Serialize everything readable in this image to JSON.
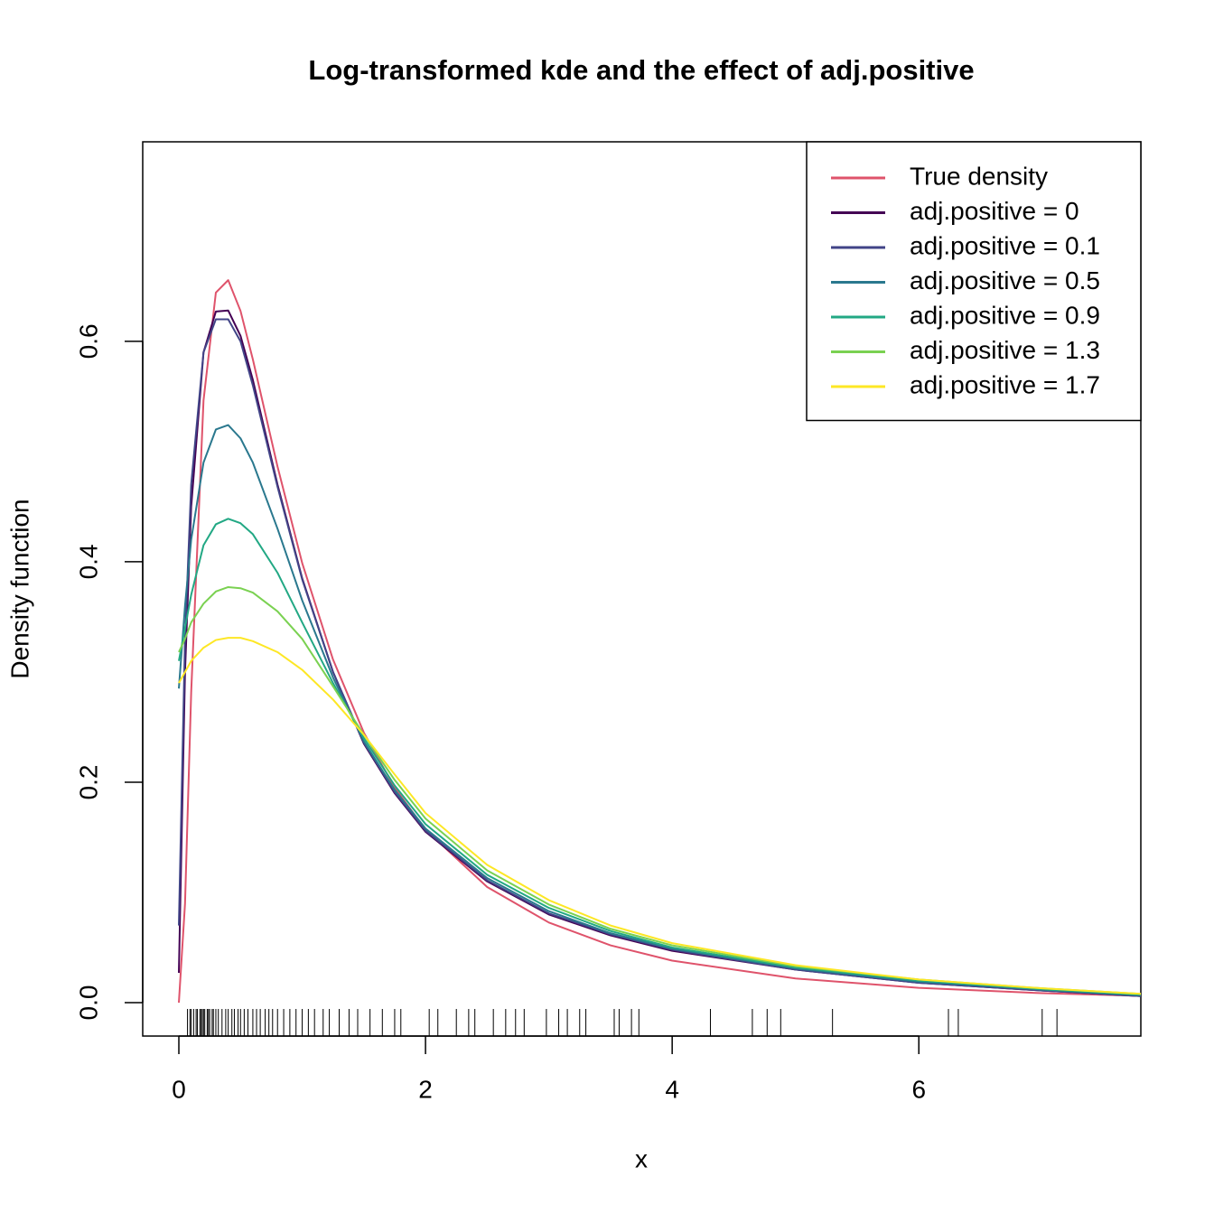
{
  "chart_data": {
    "type": "line",
    "title": "Log-transformed kde and the effect of adj.positive",
    "x_label": "x",
    "y_label": "Density function",
    "x": [
      0,
      0.05,
      0.1,
      0.2,
      0.3,
      0.4,
      0.5,
      0.6,
      0.8,
      1.0,
      1.25,
      1.5,
      1.75,
      2,
      2.5,
      3,
      3.5,
      4,
      5,
      6,
      7,
      7.8
    ],
    "series": [
      {
        "name": "True density",
        "color": "#DF536B",
        "values": [
          0,
          0.0898,
          0.2816,
          0.5463,
          0.6442,
          0.6555,
          0.6276,
          0.5836,
          0.4864,
          0.3989,
          0.3113,
          0.245,
          0.195,
          0.1569,
          0.1049,
          0.0727,
          0.052,
          0.0381,
          0.0219,
          0.0134,
          0.0086,
          0.0062
        ]
      },
      {
        "name": "adj.positive = 0",
        "color": "#440154",
        "values": [
          0.027,
          0.3,
          0.45,
          0.59,
          0.627,
          0.628,
          0.605,
          0.565,
          0.47,
          0.385,
          0.3,
          0.235,
          0.19,
          0.155,
          0.11,
          0.08,
          0.061,
          0.047,
          0.03,
          0.018,
          0.011,
          0.006
        ]
      },
      {
        "name": "adj.positive = 0.1",
        "color": "#414487",
        "values": [
          0.07,
          0.33,
          0.47,
          0.59,
          0.62,
          0.62,
          0.6,
          0.56,
          0.468,
          0.384,
          0.3,
          0.236,
          0.191,
          0.156,
          0.111,
          0.081,
          0.062,
          0.048,
          0.03,
          0.018,
          0.011,
          0.006
        ]
      },
      {
        "name": "adj.positive = 0.5",
        "color": "#2A788E",
        "values": [
          0.285,
          0.36,
          0.42,
          0.49,
          0.52,
          0.524,
          0.512,
          0.49,
          0.43,
          0.365,
          0.295,
          0.237,
          0.193,
          0.158,
          0.113,
          0.083,
          0.063,
          0.049,
          0.031,
          0.019,
          0.012,
          0.007
        ]
      },
      {
        "name": "adj.positive = 0.9",
        "color": "#22A884",
        "values": [
          0.31,
          0.34,
          0.37,
          0.415,
          0.434,
          0.439,
          0.435,
          0.425,
          0.39,
          0.345,
          0.29,
          0.24,
          0.197,
          0.162,
          0.116,
          0.086,
          0.065,
          0.05,
          0.032,
          0.02,
          0.012,
          0.007
        ]
      },
      {
        "name": "adj.positive = 1.3",
        "color": "#7AD151",
        "values": [
          0.318,
          0.33,
          0.345,
          0.362,
          0.373,
          0.377,
          0.376,
          0.372,
          0.355,
          0.33,
          0.287,
          0.243,
          0.202,
          0.167,
          0.12,
          0.089,
          0.067,
          0.052,
          0.033,
          0.021,
          0.013,
          0.008
        ]
      },
      {
        "name": "adj.positive = 1.7",
        "color": "#FDE725",
        "values": [
          0.29,
          0.3,
          0.31,
          0.322,
          0.329,
          0.331,
          0.331,
          0.328,
          0.318,
          0.302,
          0.275,
          0.243,
          0.207,
          0.172,
          0.125,
          0.093,
          0.07,
          0.054,
          0.034,
          0.021,
          0.013,
          0.008
        ]
      }
    ],
    "rug": [
      0.07,
      0.09,
      0.1,
      0.12,
      0.14,
      0.15,
      0.17,
      0.18,
      0.19,
      0.2,
      0.21,
      0.23,
      0.24,
      0.25,
      0.27,
      0.28,
      0.3,
      0.32,
      0.35,
      0.38,
      0.4,
      0.43,
      0.45,
      0.48,
      0.5,
      0.53,
      0.56,
      0.6,
      0.63,
      0.66,
      0.7,
      0.73,
      0.76,
      0.8,
      0.85,
      0.9,
      0.95,
      1.0,
      1.05,
      1.1,
      1.17,
      1.22,
      1.3,
      1.38,
      1.45,
      1.55,
      1.65,
      1.75,
      1.8,
      2.03,
      2.1,
      2.25,
      2.35,
      2.4,
      2.55,
      2.65,
      2.73,
      2.8,
      2.98,
      3.08,
      3.15,
      3.25,
      3.3,
      3.53,
      3.57,
      3.67,
      3.73,
      4.31,
      4.65,
      4.77,
      4.88,
      5.3,
      6.24,
      6.32,
      7.0,
      7.12
    ],
    "xlim": [
      -0.293,
      7.8
    ],
    "ylim": [
      -0.0303,
      0.781
    ],
    "xticks": [
      0,
      2,
      4,
      6
    ],
    "yticks": [
      {
        "value": 0,
        "label": "0.0"
      },
      0.2,
      0.4,
      0.6
    ],
    "legend": "topright",
    "grid": false
  }
}
